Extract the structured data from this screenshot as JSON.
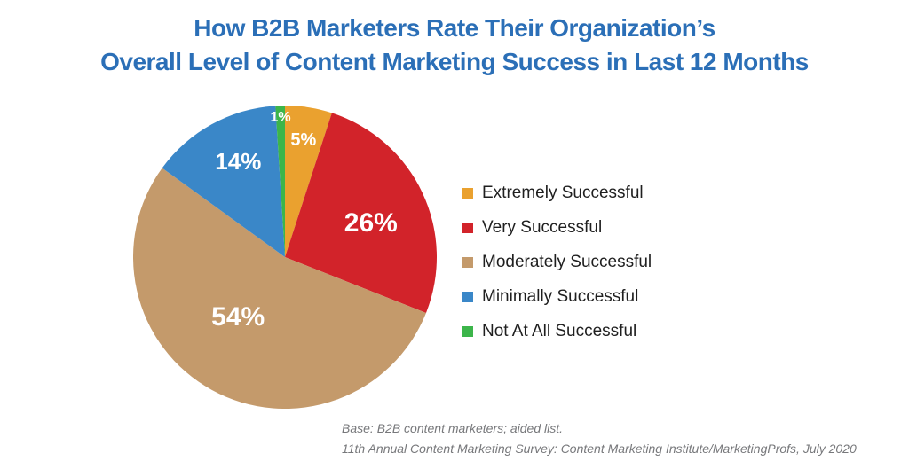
{
  "title": {
    "line1": "How B2B Marketers Rate Their Organization’s",
    "line2": "Overall Level of Content Marketing Success in Last 12 Months"
  },
  "colors": {
    "title_text": "#2B6FB7",
    "slice_label_text": "#FFFFFF",
    "legend_text": "#1F1F1F",
    "footnote_text": "#77787B",
    "background": "#FFFFFF"
  },
  "chart_data": {
    "type": "pie",
    "title": "How B2B Marketers Rate Their Organization’s Overall Level of Content Marketing Success in Last 12 Months",
    "categories": [
      "Extremely Successful",
      "Very Successful",
      "Moderately Successful",
      "Minimally Successful",
      "Not At All Successful"
    ],
    "values": [
      5,
      26,
      54,
      14,
      1
    ],
    "unit": "%",
    "colors": [
      "#EAA12F",
      "#D2232A",
      "#C49A6B",
      "#3A87C8",
      "#3CB54A"
    ],
    "start_angle_deg": 0,
    "direction": "clockwise",
    "legend_position": "right",
    "data_labels": "inside, white bold"
  },
  "footnotes": {
    "base": "Base: B2B content marketers; aided list.",
    "source": "11th Annual Content Marketing Survey: Content Marketing Institute/MarketingProfs, July 2020"
  }
}
